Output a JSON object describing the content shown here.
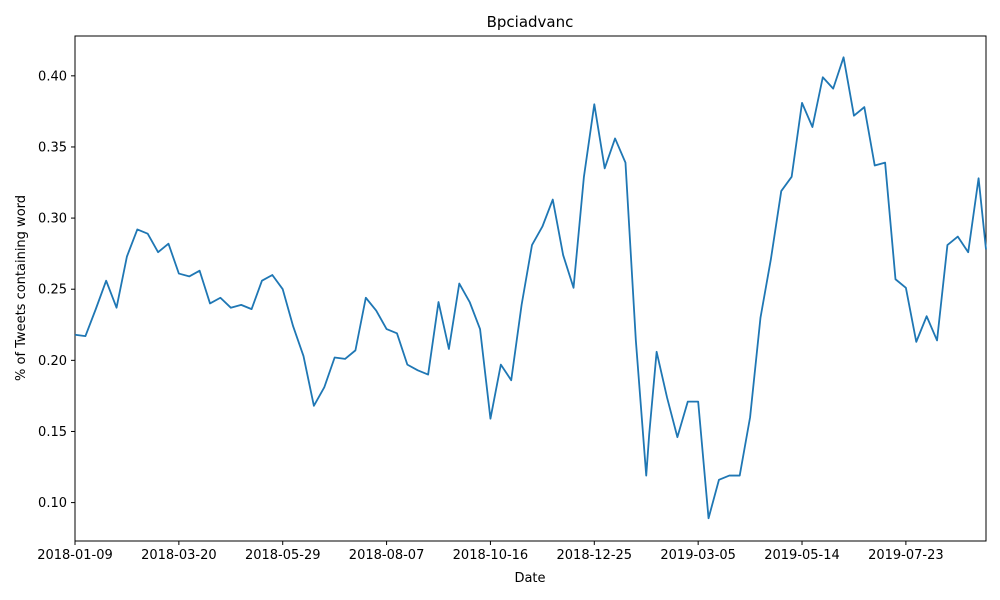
{
  "chart_data": {
    "type": "line",
    "title": "Bpciadvanc",
    "xlabel": "Date",
    "ylabel": "% of Tweets containing word",
    "xlim": [
      "2018-01-09",
      "2019-09-15"
    ],
    "ylim": [
      0.073,
      0.428
    ],
    "x_ticks": [
      "2018-01-09",
      "2018-03-20",
      "2018-05-29",
      "2018-08-07",
      "2018-10-16",
      "2018-12-25",
      "2019-03-05",
      "2019-05-14",
      "2019-07-23"
    ],
    "y_ticks": [
      0.1,
      0.15,
      0.2,
      0.25,
      0.3,
      0.35,
      0.4
    ],
    "y_tick_labels": [
      "0.10",
      "0.15",
      "0.20",
      "0.25",
      "0.30",
      "0.35",
      "0.40"
    ],
    "grid": false,
    "line_color": "#1f77b4",
    "series": [
      {
        "x": [
          "2018-01-09",
          "2018-01-16",
          "2018-01-23",
          "2018-01-30",
          "2018-02-06",
          "2018-02-13",
          "2018-02-20",
          "2018-02-27",
          "2018-03-06",
          "2018-03-13",
          "2018-03-20",
          "2018-03-27",
          "2018-04-03",
          "2018-04-10",
          "2018-04-17",
          "2018-04-24",
          "2018-05-01",
          "2018-05-08",
          "2018-05-15",
          "2018-05-22",
          "2018-05-29",
          "2018-06-05",
          "2018-06-12",
          "2018-06-19",
          "2018-06-26",
          "2018-07-03",
          "2018-07-10",
          "2018-07-17",
          "2018-07-24",
          "2018-07-31",
          "2018-08-07",
          "2018-08-14",
          "2018-08-21",
          "2018-08-28",
          "2018-09-04",
          "2018-09-11",
          "2018-09-18",
          "2018-09-25",
          "2018-10-02",
          "2018-10-09",
          "2018-10-16",
          "2018-10-23",
          "2018-10-30",
          "2018-11-06",
          "2018-11-13",
          "2018-11-20",
          "2018-11-27",
          "2018-12-04",
          "2018-12-11",
          "2018-12-18",
          "2018-12-25",
          "2019-01-01",
          "2019-01-08",
          "2019-01-15",
          "2019-01-22",
          "2019-01-29",
          "2019-01-31",
          "2019-02-05",
          "2019-02-12",
          "2019-02-19",
          "2019-02-26",
          "2019-03-05",
          "2019-03-12",
          "2019-03-19",
          "2019-03-26",
          "2019-04-02",
          "2019-04-09",
          "2019-04-16",
          "2019-04-23",
          "2019-04-30",
          "2019-05-07",
          "2019-05-14",
          "2019-05-21",
          "2019-05-28",
          "2019-06-04",
          "2019-06-11",
          "2019-06-18",
          "2019-06-25",
          "2019-07-02",
          "2019-07-09",
          "2019-07-16",
          "2019-07-23",
          "2019-07-30",
          "2019-08-06",
          "2019-08-13",
          "2019-08-20",
          "2019-08-27",
          "2019-09-03",
          "2019-09-10",
          "2019-09-15"
        ],
        "values": [
          0.218,
          0.217,
          0.236,
          0.256,
          0.237,
          0.273,
          0.292,
          0.289,
          0.276,
          0.282,
          0.261,
          0.259,
          0.263,
          0.24,
          0.244,
          0.237,
          0.239,
          0.236,
          0.256,
          0.26,
          0.25,
          0.224,
          0.203,
          0.168,
          0.181,
          0.202,
          0.201,
          0.207,
          0.244,
          0.235,
          0.222,
          0.219,
          0.197,
          0.193,
          0.19,
          0.241,
          0.208,
          0.254,
          0.241,
          0.222,
          0.159,
          0.197,
          0.186,
          0.239,
          0.281,
          0.294,
          0.313,
          0.274,
          0.251,
          0.329,
          0.38,
          0.335,
          0.356,
          0.339,
          0.214,
          0.119,
          0.148,
          0.206,
          0.174,
          0.146,
          0.171,
          0.171,
          0.089,
          0.116,
          0.119,
          0.119,
          0.16,
          0.23,
          0.271,
          0.319,
          0.329,
          0.381,
          0.364,
          0.399,
          0.391,
          0.413,
          0.372,
          0.378,
          0.337,
          0.339,
          0.257,
          0.251,
          0.213,
          0.231,
          0.214,
          0.281,
          0.287,
          0.276,
          0.328,
          0.278
        ]
      }
    ]
  }
}
